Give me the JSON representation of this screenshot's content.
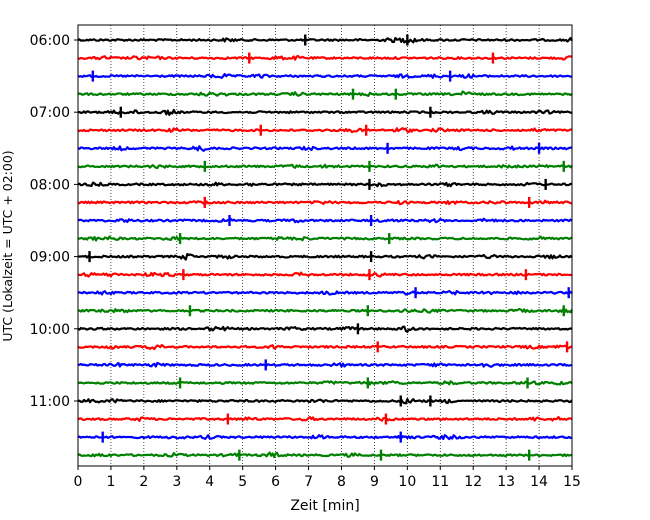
{
  "chart_data": {
    "type": "line",
    "title": "",
    "xlabel": "Zeit  [min]",
    "ylabel": "UTC (Lokalzeit = UTC + 02:00)",
    "xlim": [
      0,
      15
    ],
    "x_ticks": [
      "0",
      "1",
      "2",
      "3",
      "4",
      "5",
      "6",
      "7",
      "8",
      "9",
      "10",
      "11",
      "12",
      "13",
      "14",
      "15"
    ],
    "y_ticks": [
      "06:00",
      "07:00",
      "08:00",
      "09:00",
      "10:00",
      "11:00"
    ],
    "grid": "vertical dotted lines at each minute",
    "legend": "none",
    "color_cycle": [
      "#000000",
      "#ff0000",
      "#0000ff",
      "#008000"
    ],
    "trace_interval_minutes": 15,
    "traces": [
      {
        "start": "06:00",
        "color": "#000000",
        "spikes_min": [
          6.9,
          10.0
        ]
      },
      {
        "start": "06:15",
        "color": "#ff0000",
        "spikes_min": [
          5.2,
          12.6
        ]
      },
      {
        "start": "06:30",
        "color": "#0000ff",
        "spikes_min": [
          0.45,
          11.3
        ]
      },
      {
        "start": "06:45",
        "color": "#008000",
        "spikes_min": [
          8.35,
          9.65
        ]
      },
      {
        "start": "07:00",
        "color": "#000000",
        "spikes_min": [
          1.3,
          10.7
        ]
      },
      {
        "start": "07:15",
        "color": "#ff0000",
        "spikes_min": [
          5.55,
          8.75
        ]
      },
      {
        "start": "07:30",
        "color": "#0000ff",
        "spikes_min": [
          9.4,
          14.0
        ]
      },
      {
        "start": "07:45",
        "color": "#008000",
        "spikes_min": [
          3.85,
          8.85,
          14.75
        ]
      },
      {
        "start": "08:00",
        "color": "#000000",
        "spikes_min": [
          8.85,
          14.2
        ]
      },
      {
        "start": "08:15",
        "color": "#ff0000",
        "spikes_min": [
          3.85,
          13.7
        ]
      },
      {
        "start": "08:30",
        "color": "#0000ff",
        "spikes_min": [
          4.6,
          8.9
        ]
      },
      {
        "start": "08:45",
        "color": "#008000",
        "spikes_min": [
          3.1,
          9.45
        ]
      },
      {
        "start": "09:00",
        "color": "#000000",
        "spikes_min": [
          0.35,
          8.9
        ]
      },
      {
        "start": "09:15",
        "color": "#ff0000",
        "spikes_min": [
          3.2,
          8.85,
          13.6
        ]
      },
      {
        "start": "09:30",
        "color": "#0000ff",
        "spikes_min": [
          10.25,
          14.9
        ]
      },
      {
        "start": "09:45",
        "color": "#008000",
        "spikes_min": [
          3.4,
          8.8,
          14.75
        ]
      },
      {
        "start": "10:00",
        "color": "#000000",
        "spikes_min": [
          8.5
        ]
      },
      {
        "start": "10:15",
        "color": "#ff0000",
        "spikes_min": [
          9.1,
          14.85
        ]
      },
      {
        "start": "10:30",
        "color": "#0000ff",
        "spikes_min": [
          5.7
        ]
      },
      {
        "start": "10:45",
        "color": "#008000",
        "spikes_min": [
          3.1,
          8.8,
          13.65
        ]
      },
      {
        "start": "11:00",
        "color": "#000000",
        "spikes_min": [
          9.8,
          10.7
        ]
      },
      {
        "start": "11:15",
        "color": "#ff0000",
        "spikes_min": [
          4.55,
          9.35
        ]
      },
      {
        "start": "11:30",
        "color": "#0000ff",
        "spikes_min": [
          0.75,
          9.8
        ]
      },
      {
        "start": "11:45",
        "color": "#008000",
        "spikes_min": [
          4.9,
          9.2,
          13.7
        ]
      }
    ]
  }
}
